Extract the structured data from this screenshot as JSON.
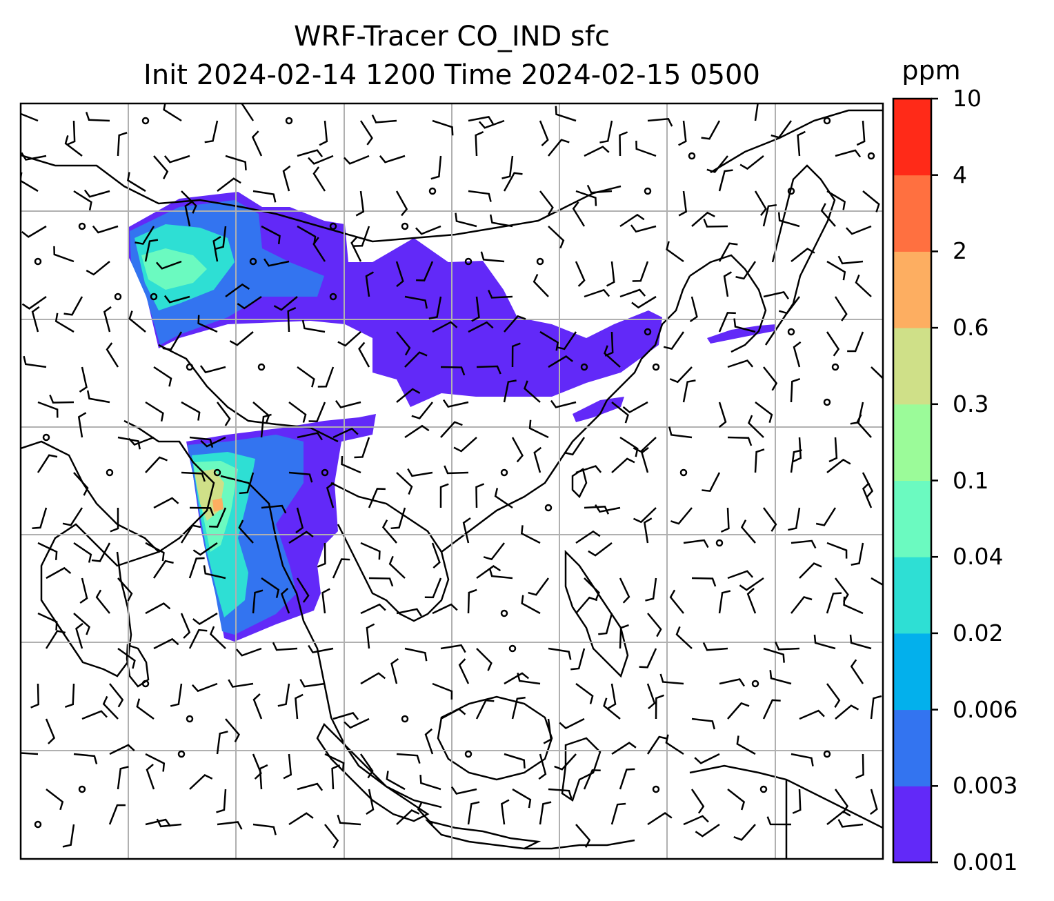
{
  "title": {
    "line1": "WRF-Tracer CO_IND sfc",
    "line2": "Init 2024-02-14 1200 Time 2024-02-15 0500"
  },
  "colorbar": {
    "unit": "ppm",
    "levels": [
      "0.001",
      "0.003",
      "0.006",
      "0.02",
      "0.04",
      "0.1",
      "0.3",
      "0.6",
      "2",
      "4",
      "10"
    ],
    "colors": [
      "#6229f8",
      "#3374f0",
      "#03b0ec",
      "#2edfd4",
      "#6bfac0",
      "#9bfb99",
      "#cfe088",
      "#fdae61",
      "#ff7040",
      "#ff2a18"
    ]
  },
  "map": {
    "gridlines": true,
    "grid_color": "#b0b0b0",
    "coastline_color": "#000000",
    "wind_barbs": true
  }
}
